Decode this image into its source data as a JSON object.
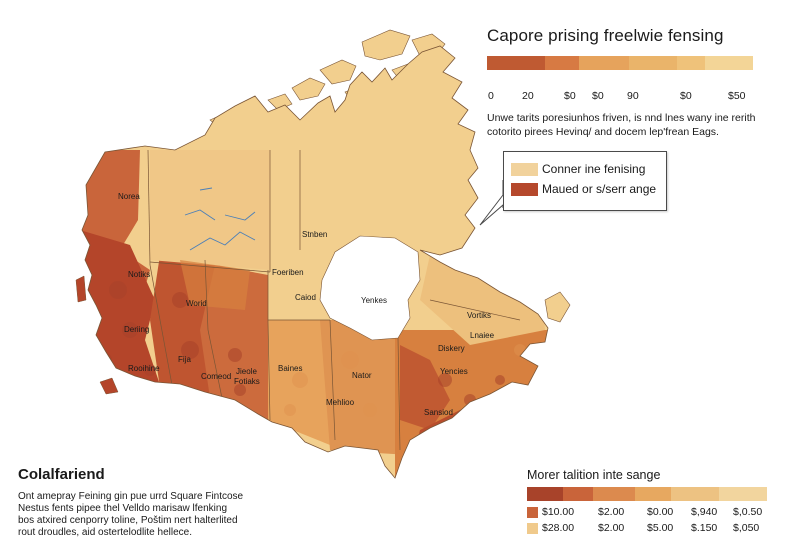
{
  "title": "Capore prising freelwie fensing",
  "scale": {
    "colors": [
      "#bf5a32",
      "#d77a43",
      "#e6a35c",
      "#eab46a",
      "#efc27a",
      "#f3d597"
    ],
    "labels": [
      "0",
      "20",
      "$0",
      "$0",
      "90",
      "$0",
      "$50"
    ]
  },
  "description": [
    "Unwe tarits poresiunhos friven, is nnd lnes wany ine rerith",
    "cotorito pirees Hevinq/ and docem lep'frean Eags."
  ],
  "callout": {
    "items": [
      {
        "label": "Conner ine fenising",
        "color": "#f1d29c"
      },
      {
        "label": "Maued or s/serr ange",
        "color": "#b5482c"
      }
    ]
  },
  "map": {
    "labels": [
      "Norea",
      "Stnben",
      "Foeriben",
      "Notiks",
      "Caiod",
      "Yenkes",
      "Worid",
      "Deriing",
      "Fija",
      "Rooihine",
      "Comeod",
      "Jieole",
      "Fotiaks",
      "Baines",
      "Nator",
      "Mehlioo",
      "Vortiks",
      "Lnaiee",
      "Diskery",
      "Yencies",
      "Sansiod"
    ],
    "colors": {
      "land": "#f2cf8e",
      "dark": "#b4452a",
      "mid": "#d2773f",
      "light": "#e7a85e",
      "water": "#ffffff",
      "river": "#4a7fb8",
      "border": "#7a5535"
    }
  },
  "bottom": {
    "title": "Colalfariend",
    "lines": [
      "Ont amepray Feining gin pue urrd Square Fintcose",
      "Nestus fents pipee thel Velldo marisaw lfenking",
      "bos atxired cenporry toline, Poštim nert halterlited",
      "rout droudles, aid ostertelodlite hellece."
    ]
  },
  "legend2": {
    "title": "Morer talition inte sange",
    "colors": [
      "#a8432a",
      "#c9643a",
      "#dc8a4e",
      "#e7a860",
      "#edc282",
      "#f2d59e"
    ],
    "rows": [
      {
        "color": "#c9643a",
        "values": [
          "$10.00",
          "$2.00",
          "$0.00",
          "$,940",
          "$,0.50"
        ]
      },
      {
        "color": "#f0ca8c",
        "values": [
          "$28.00",
          "$2.00",
          "$5.00",
          "$.150",
          "$,050"
        ]
      }
    ]
  }
}
